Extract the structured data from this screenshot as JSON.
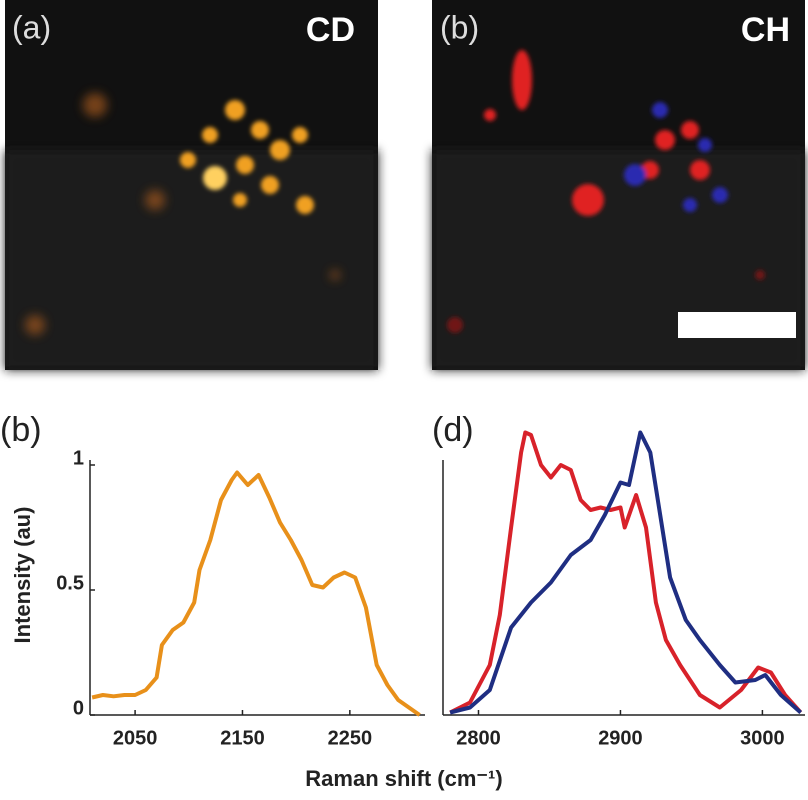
{
  "panels": [
    {
      "label": "(a)",
      "title": "CD"
    },
    {
      "label": "(b)",
      "title": "CH"
    }
  ],
  "x_label": "Raman shift (cm⁻¹)",
  "chart_data": [
    {
      "type": "line",
      "label": "(b)",
      "ylabel": "Intensity (au)",
      "xlim": [
        2008,
        2320
      ],
      "xticks": [
        2050,
        2150,
        2250
      ],
      "ylim": [
        0,
        1.2
      ],
      "yticks": [
        0,
        0.5,
        1
      ],
      "show_yticks": true,
      "series": [
        {
          "color": "#e8901a",
          "x": [
            2010,
            2020,
            2030,
            2040,
            2050,
            2060,
            2070,
            2075,
            2085,
            2095,
            2105,
            2110,
            2120,
            2130,
            2140,
            2145,
            2155,
            2165,
            2175,
            2185,
            2195,
            2205,
            2215,
            2225,
            2235,
            2245,
            2255,
            2265,
            2275,
            2285,
            2295,
            2305,
            2315
          ],
          "values": [
            0.07,
            0.08,
            0.075,
            0.08,
            0.08,
            0.1,
            0.15,
            0.28,
            0.34,
            0.37,
            0.45,
            0.58,
            0.7,
            0.86,
            0.94,
            0.97,
            0.92,
            0.96,
            0.87,
            0.77,
            0.7,
            0.62,
            0.52,
            0.51,
            0.55,
            0.57,
            0.55,
            0.43,
            0.2,
            0.12,
            0.06,
            0.03,
            0
          ]
        }
      ]
    },
    {
      "type": "line",
      "label": "(d)",
      "xlim": [
        2775,
        3030
      ],
      "xticks": [
        2800,
        2900,
        3000
      ],
      "ylim": [
        0,
        1.2
      ],
      "show_yticks": false,
      "series": [
        {
          "color": "#d8222a",
          "x": [
            2780,
            2794,
            2808,
            2815,
            2823,
            2830,
            2833,
            2837,
            2844,
            2851,
            2858,
            2865,
            2872,
            2879,
            2886,
            2893,
            2900,
            2903,
            2911,
            2918,
            2925,
            2932,
            2942,
            2956,
            2970,
            2985,
            2997,
            3006,
            3016,
            3027
          ],
          "values": [
            0.01,
            0.05,
            0.2,
            0.4,
            0.75,
            1.05,
            1.13,
            1.12,
            1.0,
            0.95,
            1.0,
            0.98,
            0.86,
            0.82,
            0.83,
            0.82,
            0.83,
            0.75,
            0.88,
            0.75,
            0.45,
            0.3,
            0.2,
            0.08,
            0.03,
            0.1,
            0.19,
            0.17,
            0.08,
            0.01
          ]
        },
        {
          "color": "#1f2e82",
          "x": [
            2780,
            2794,
            2808,
            2823,
            2837,
            2851,
            2865,
            2879,
            2889,
            2900,
            2906,
            2914,
            2921,
            2928,
            2935,
            2946,
            2956,
            2970,
            2981,
            2995,
            3002,
            3013,
            3027
          ],
          "values": [
            0.01,
            0.03,
            0.1,
            0.35,
            0.45,
            0.53,
            0.64,
            0.7,
            0.8,
            0.93,
            0.92,
            1.13,
            1.05,
            0.8,
            0.55,
            0.38,
            0.3,
            0.2,
            0.13,
            0.14,
            0.16,
            0.08,
            0.01
          ]
        }
      ]
    }
  ]
}
